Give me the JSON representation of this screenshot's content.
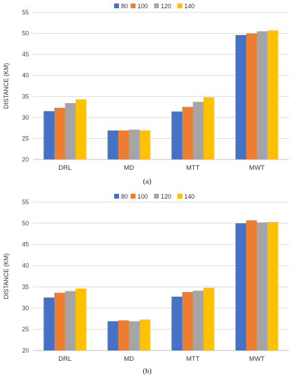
{
  "colors": {
    "80": "#4472C4",
    "100": "#ED7D31",
    "120": "#A5A5A5",
    "140": "#FFC000",
    "grid": "#d9d9d9",
    "axis": "#bfbfbf"
  },
  "chart_data": [
    {
      "type": "bar",
      "panel_label": "(a)",
      "ylabel": "DISTANCE (KM)",
      "xlabel": "",
      "ylim": [
        20,
        55
      ],
      "yticks": [
        20,
        25,
        30,
        35,
        40,
        45,
        50,
        55
      ],
      "grid": true,
      "legend_position": "top-center",
      "categories": [
        "DRL",
        "MD",
        "MTT",
        "MWT"
      ],
      "series": [
        {
          "name": "80",
          "color": "#4472C4",
          "values": [
            31.5,
            26.9,
            31.4,
            49.6
          ]
        },
        {
          "name": "100",
          "color": "#ED7D31",
          "values": [
            32.3,
            26.9,
            32.5,
            50.0
          ]
        },
        {
          "name": "120",
          "color": "#A5A5A5",
          "values": [
            33.4,
            27.1,
            33.7,
            50.5
          ]
        },
        {
          "name": "140",
          "color": "#FFC000",
          "values": [
            34.3,
            26.9,
            34.8,
            50.7
          ]
        }
      ]
    },
    {
      "type": "bar",
      "panel_label": "(b)",
      "ylabel": "DISTANCE (KM)",
      "xlabel": "",
      "ylim": [
        20,
        55
      ],
      "yticks": [
        20,
        25,
        30,
        35,
        40,
        45,
        50,
        55
      ],
      "grid": true,
      "legend_position": "top-center",
      "categories": [
        "DRL",
        "MD",
        "MTT",
        "MWT"
      ],
      "series": [
        {
          "name": "80",
          "color": "#4472C4",
          "values": [
            32.5,
            26.9,
            32.7,
            50.0
          ]
        },
        {
          "name": "100",
          "color": "#ED7D31",
          "values": [
            33.6,
            27.1,
            33.8,
            50.7
          ]
        },
        {
          "name": "120",
          "color": "#A5A5A5",
          "values": [
            34.0,
            26.9,
            34.1,
            50.2
          ]
        },
        {
          "name": "140",
          "color": "#FFC000",
          "values": [
            34.6,
            27.3,
            34.8,
            50.3
          ]
        }
      ]
    }
  ]
}
